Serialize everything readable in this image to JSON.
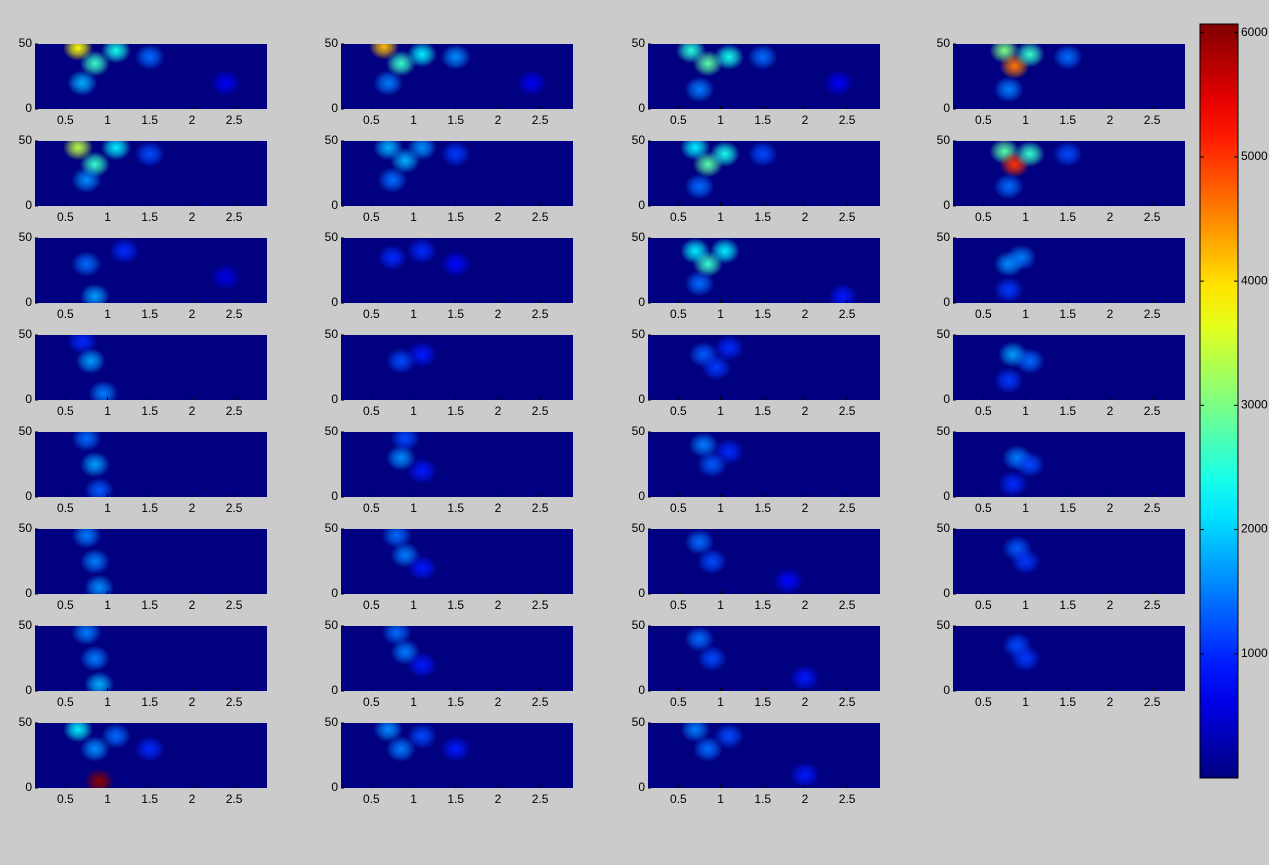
{
  "chart_data": [
    {
      "type": "heatmap",
      "xlim": [
        0.14,
        2.89
      ],
      "ylim": [
        0,
        50
      ],
      "xticks": [
        0.5,
        1,
        1.5,
        2,
        2.5
      ],
      "yticks": [
        0,
        50
      ],
      "x": [
        0.65,
        0.85,
        1.1,
        0.7,
        1.5,
        2.4
      ],
      "y": [
        47,
        35,
        45,
        20,
        40,
        20
      ],
      "values": [
        3800,
        2600,
        2400,
        1800,
        1400,
        700
      ]
    },
    {
      "type": "heatmap",
      "xlim": [
        0.14,
        2.89
      ],
      "ylim": [
        0,
        50
      ],
      "xticks": [
        0.5,
        1,
        1.5,
        2,
        2.5
      ],
      "yticks": [
        0,
        50
      ],
      "x": [
        0.65,
        0.85,
        1.1,
        1.5,
        0.7,
        2.4
      ],
      "y": [
        48,
        35,
        42,
        40,
        20,
        20
      ],
      "values": [
        4200,
        2600,
        2200,
        1600,
        1500,
        700
      ]
    },
    {
      "type": "heatmap",
      "xlim": [
        0.14,
        2.89
      ],
      "ylim": [
        0,
        50
      ],
      "xticks": [
        0.5,
        1,
        1.5,
        2,
        2.5
      ],
      "yticks": [
        0,
        50
      ],
      "x": [
        0.65,
        0.85,
        1.1,
        0.75,
        1.5,
        2.4
      ],
      "y": [
        45,
        35,
        40,
        15,
        40,
        20
      ],
      "values": [
        2500,
        2800,
        2400,
        1500,
        1400,
        700
      ]
    },
    {
      "type": "heatmap",
      "xlim": [
        0.14,
        2.89
      ],
      "ylim": [
        0,
        50
      ],
      "xticks": [
        0.5,
        1,
        1.5,
        2,
        2.5
      ],
      "yticks": [
        0,
        50
      ],
      "x": [
        0.75,
        0.87,
        1.05,
        0.8,
        1.5
      ],
      "y": [
        45,
        33,
        42,
        15,
        40
      ],
      "values": [
        3000,
        4600,
        2600,
        1500,
        1400
      ]
    },
    {
      "type": "heatmap",
      "xlim": [
        0.14,
        2.89
      ],
      "ylim": [
        0,
        50
      ],
      "xticks": [
        0.5,
        1,
        1.5,
        2,
        2.5
      ],
      "yticks": [
        0,
        50
      ],
      "x": [
        0.65,
        0.85,
        1.1,
        0.75,
        1.5
      ],
      "y": [
        45,
        32,
        45,
        20,
        40
      ],
      "values": [
        3400,
        2600,
        2200,
        1600,
        1200
      ]
    },
    {
      "type": "heatmap",
      "xlim": [
        0.14,
        2.89
      ],
      "ylim": [
        0,
        50
      ],
      "xticks": [
        0.5,
        1,
        1.5,
        2,
        2.5
      ],
      "yticks": [
        0,
        50
      ],
      "x": [
        0.7,
        0.9,
        1.1,
        0.75,
        1.5
      ],
      "y": [
        45,
        35,
        45,
        20,
        40
      ],
      "values": [
        1800,
        1800,
        1600,
        1400,
        1100
      ]
    },
    {
      "type": "heatmap",
      "xlim": [
        0.14,
        2.89
      ],
      "ylim": [
        0,
        50
      ],
      "xticks": [
        0.5,
        1,
        1.5,
        2,
        2.5
      ],
      "yticks": [
        0,
        50
      ],
      "x": [
        0.7,
        0.85,
        1.05,
        0.75,
        1.5
      ],
      "y": [
        45,
        32,
        40,
        15,
        40
      ],
      "values": [
        2200,
        2800,
        2400,
        1400,
        1200
      ]
    },
    {
      "type": "heatmap",
      "xlim": [
        0.14,
        2.89
      ],
      "ylim": [
        0,
        50
      ],
      "xticks": [
        0.5,
        1,
        1.5,
        2,
        2.5
      ],
      "yticks": [
        0,
        50
      ],
      "x": [
        0.75,
        0.87,
        1.05,
        0.8,
        1.5
      ],
      "y": [
        42,
        32,
        40,
        15,
        40
      ],
      "values": [
        2800,
        5000,
        2600,
        1400,
        1200
      ]
    },
    {
      "type": "heatmap",
      "xlim": [
        0.14,
        2.89
      ],
      "ylim": [
        0,
        50
      ],
      "xticks": [
        0.5,
        1,
        1.5,
        2,
        2.5
      ],
      "yticks": [
        0,
        50
      ],
      "x": [
        0.75,
        0.85,
        1.2,
        2.4
      ],
      "y": [
        30,
        5,
        40,
        20
      ],
      "values": [
        1400,
        1700,
        1000,
        600
      ]
    },
    {
      "type": "heatmap",
      "xlim": [
        0.14,
        2.89
      ],
      "ylim": [
        0,
        50
      ],
      "xticks": [
        0.5,
        1,
        1.5,
        2,
        2.5
      ],
      "yticks": [
        0,
        50
      ],
      "x": [
        0.75,
        1.1,
        1.5
      ],
      "y": [
        35,
        40,
        30
      ],
      "values": [
        1000,
        1000,
        800
      ]
    },
    {
      "type": "heatmap",
      "xlim": [
        0.14,
        2.89
      ],
      "ylim": [
        0,
        50
      ],
      "xticks": [
        0.5,
        1,
        1.5,
        2,
        2.5
      ],
      "yticks": [
        0,
        50
      ],
      "x": [
        0.7,
        0.85,
        1.05,
        0.75,
        2.45
      ],
      "y": [
        40,
        30,
        40,
        15,
        5
      ],
      "values": [
        2200,
        2600,
        2200,
        1400,
        900
      ]
    },
    {
      "type": "heatmap",
      "xlim": [
        0.14,
        2.89
      ],
      "ylim": [
        0,
        50
      ],
      "xticks": [
        0.5,
        1,
        1.5,
        2,
        2.5
      ],
      "yticks": [
        0,
        50
      ],
      "x": [
        0.8,
        0.95,
        0.8
      ],
      "y": [
        30,
        35,
        10
      ],
      "values": [
        1600,
        1500,
        1100
      ]
    },
    {
      "type": "heatmap",
      "xlim": [
        0.14,
        2.89
      ],
      "ylim": [
        0,
        50
      ],
      "xticks": [
        0.5,
        1,
        1.5,
        2,
        2.5
      ],
      "yticks": [
        0,
        50
      ],
      "x": [
        0.8,
        0.95,
        0.7
      ],
      "y": [
        30,
        5,
        45
      ],
      "values": [
        1700,
        1500,
        1000
      ]
    },
    {
      "type": "heatmap",
      "xlim": [
        0.14,
        2.89
      ],
      "ylim": [
        0,
        50
      ],
      "xticks": [
        0.5,
        1,
        1.5,
        2,
        2.5
      ],
      "yticks": [
        0,
        50
      ],
      "x": [
        0.85,
        1.1
      ],
      "y": [
        30,
        35
      ],
      "values": [
        1200,
        900
      ]
    },
    {
      "type": "heatmap",
      "xlim": [
        0.14,
        2.89
      ],
      "ylim": [
        0,
        50
      ],
      "xticks": [
        0.5,
        1,
        1.5,
        2,
        2.5
      ],
      "yticks": [
        0,
        50
      ],
      "x": [
        0.8,
        0.95,
        1.1
      ],
      "y": [
        35,
        25,
        40
      ],
      "values": [
        1300,
        1100,
        1000
      ]
    },
    {
      "type": "heatmap",
      "xlim": [
        0.14,
        2.89
      ],
      "ylim": [
        0,
        50
      ],
      "xticks": [
        0.5,
        1,
        1.5,
        2,
        2.5
      ],
      "yticks": [
        0,
        50
      ],
      "x": [
        0.85,
        1.05,
        0.8
      ],
      "y": [
        35,
        30,
        15
      ],
      "values": [
        1700,
        1400,
        1100
      ]
    },
    {
      "type": "heatmap",
      "xlim": [
        0.14,
        2.89
      ],
      "ylim": [
        0,
        50
      ],
      "xticks": [
        0.5,
        1,
        1.5,
        2,
        2.5
      ],
      "yticks": [
        0,
        50
      ],
      "x": [
        0.75,
        0.85,
        0.9
      ],
      "y": [
        45,
        25,
        5
      ],
      "values": [
        1400,
        1700,
        1300
      ]
    },
    {
      "type": "heatmap",
      "xlim": [
        0.14,
        2.89
      ],
      "ylim": [
        0,
        50
      ],
      "xticks": [
        0.5,
        1,
        1.5,
        2,
        2.5
      ],
      "yticks": [
        0,
        50
      ],
      "x": [
        0.85,
        0.9,
        1.1
      ],
      "y": [
        30,
        45,
        20
      ],
      "values": [
        1600,
        1200,
        900
      ]
    },
    {
      "type": "heatmap",
      "xlim": [
        0.14,
        2.89
      ],
      "ylim": [
        0,
        50
      ],
      "xticks": [
        0.5,
        1,
        1.5,
        2,
        2.5
      ],
      "yticks": [
        0,
        50
      ],
      "x": [
        0.8,
        0.9,
        1.1
      ],
      "y": [
        40,
        25,
        35
      ],
      "values": [
        1500,
        1300,
        1000
      ]
    },
    {
      "type": "heatmap",
      "xlim": [
        0.14,
        2.89
      ],
      "ylim": [
        0,
        50
      ],
      "xticks": [
        0.5,
        1,
        1.5,
        2,
        2.5
      ],
      "yticks": [
        0,
        50
      ],
      "x": [
        0.9,
        1.05,
        0.85
      ],
      "y": [
        30,
        25,
        10
      ],
      "values": [
        1500,
        1200,
        1000
      ]
    },
    {
      "type": "heatmap",
      "xlim": [
        0.14,
        2.89
      ],
      "ylim": [
        0,
        50
      ],
      "xticks": [
        0.5,
        1,
        1.5,
        2,
        2.5
      ],
      "yticks": [
        0,
        50
      ],
      "x": [
        0.75,
        0.85,
        0.9
      ],
      "y": [
        45,
        25,
        5
      ],
      "values": [
        1500,
        1500,
        1600
      ]
    },
    {
      "type": "heatmap",
      "xlim": [
        0.14,
        2.89
      ],
      "ylim": [
        0,
        50
      ],
      "xticks": [
        0.5,
        1,
        1.5,
        2,
        2.5
      ],
      "yticks": [
        0,
        50
      ],
      "x": [
        0.8,
        0.9,
        1.1
      ],
      "y": [
        45,
        30,
        20
      ],
      "values": [
        1400,
        1500,
        900
      ]
    },
    {
      "type": "heatmap",
      "xlim": [
        0.14,
        2.89
      ],
      "ylim": [
        0,
        50
      ],
      "xticks": [
        0.5,
        1,
        1.5,
        2,
        2.5
      ],
      "yticks": [
        0,
        50
      ],
      "x": [
        0.75,
        0.9,
        1.8
      ],
      "y": [
        40,
        25,
        10
      ],
      "values": [
        1400,
        1200,
        800
      ]
    },
    {
      "type": "heatmap",
      "xlim": [
        0.14,
        2.89
      ],
      "ylim": [
        0,
        50
      ],
      "xticks": [
        0.5,
        1,
        1.5,
        2,
        2.5
      ],
      "yticks": [
        0,
        50
      ],
      "x": [
        0.9,
        1.0
      ],
      "y": [
        35,
        25
      ],
      "values": [
        1300,
        1100
      ]
    },
    {
      "type": "heatmap",
      "xlim": [
        0.14,
        2.89
      ],
      "ylim": [
        0,
        50
      ],
      "xticks": [
        0.5,
        1,
        1.5,
        2,
        2.5
      ],
      "yticks": [
        0,
        50
      ],
      "x": [
        0.75,
        0.85,
        0.9
      ],
      "y": [
        45,
        25,
        5
      ],
      "values": [
        1500,
        1500,
        1800
      ]
    },
    {
      "type": "heatmap",
      "xlim": [
        0.14,
        2.89
      ],
      "ylim": [
        0,
        50
      ],
      "xticks": [
        0.5,
        1,
        1.5,
        2,
        2.5
      ],
      "yticks": [
        0,
        50
      ],
      "x": [
        0.8,
        0.9,
        1.1
      ],
      "y": [
        45,
        30,
        20
      ],
      "values": [
        1400,
        1500,
        900
      ]
    },
    {
      "type": "heatmap",
      "xlim": [
        0.14,
        2.89
      ],
      "ylim": [
        0,
        50
      ],
      "xticks": [
        0.5,
        1,
        1.5,
        2,
        2.5
      ],
      "yticks": [
        0,
        50
      ],
      "x": [
        0.75,
        0.9,
        2.0
      ],
      "y": [
        40,
        25,
        10
      ],
      "values": [
        1400,
        1200,
        900
      ]
    },
    {
      "type": "heatmap",
      "xlim": [
        0.14,
        2.89
      ],
      "ylim": [
        0,
        50
      ],
      "xticks": [
        0.5,
        1,
        1.5,
        2,
        2.5
      ],
      "yticks": [
        0,
        50
      ],
      "x": [
        0.9,
        1.0
      ],
      "y": [
        35,
        25
      ],
      "values": [
        1200,
        1100
      ]
    },
    {
      "type": "heatmap",
      "xlim": [
        0.14,
        2.89
      ],
      "ylim": [
        0,
        50
      ],
      "xticks": [
        0.5,
        1,
        1.5,
        2,
        2.5
      ],
      "yticks": [
        0,
        50
      ],
      "x": [
        0.65,
        0.85,
        1.1,
        0.9,
        1.5
      ],
      "y": [
        45,
        30,
        40,
        5,
        30
      ],
      "values": [
        2200,
        1600,
        1400,
        6000,
        1000
      ]
    },
    {
      "type": "heatmap",
      "xlim": [
        0.14,
        2.89
      ],
      "ylim": [
        0,
        50
      ],
      "xticks": [
        0.5,
        1,
        1.5,
        2,
        2.5
      ],
      "yticks": [
        0,
        50
      ],
      "x": [
        0.7,
        0.85,
        1.1,
        1.5
      ],
      "y": [
        45,
        30,
        40,
        30
      ],
      "values": [
        1600,
        1500,
        1200,
        900
      ]
    },
    {
      "type": "heatmap",
      "xlim": [
        0.14,
        2.89
      ],
      "ylim": [
        0,
        50
      ],
      "xticks": [
        0.5,
        1,
        1.5,
        2,
        2.5
      ],
      "yticks": [
        0,
        50
      ],
      "x": [
        0.7,
        0.85,
        1.1,
        2.0
      ],
      "y": [
        45,
        30,
        40,
        10
      ],
      "values": [
        1500,
        1400,
        1200,
        900
      ]
    },
    {
      "type": "colorbar",
      "ylim": [
        0,
        6070
      ],
      "yticks": [
        1000,
        2000,
        3000,
        4000,
        5000,
        6000
      ]
    }
  ]
}
